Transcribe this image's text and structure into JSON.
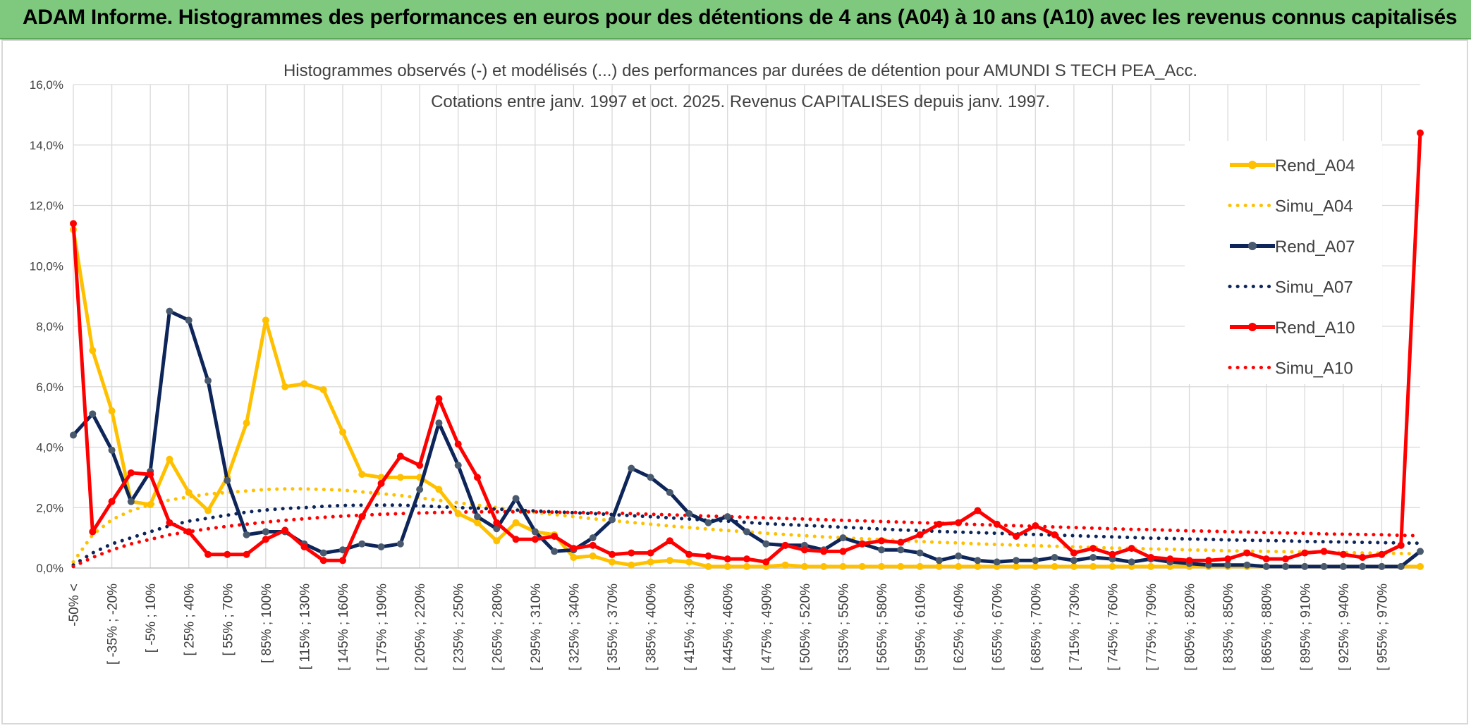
{
  "header": {
    "title": "ADAM Informe. Histogrammes des performances en euros pour des détentions de 4 ans (A04) à 10 ans (A10) avec les revenus connus capitalisés"
  },
  "chart_data": {
    "type": "line",
    "title_line1": "Histogrammes observés (-) et modélisés (...) des performances par durées de détention pour AMUNDI S TECH PEA_Acc.",
    "title_line2": "Cotations entre janv. 1997 et oct. 2025. Revenus CAPITALISES depuis janv. 1997.",
    "ylim": [
      0,
      16
    ],
    "yticks": [
      "0,0%",
      "2,0%",
      "4,0%",
      "6,0%",
      "8,0%",
      "10,0%",
      "12,0%",
      "14,0%",
      "16,0%"
    ],
    "xtick_labels": [
      "-50% <",
      "[ -35% ; -20%",
      "[ -5% ; 10%",
      "[ 25% ; 40%",
      "[ 55% ; 70%",
      "[ 85% ; 100%",
      "[ 115% ; 130%",
      "[ 145% ; 160%",
      "[ 175% ; 190%",
      "[ 205% ; 220%",
      "[ 235% ; 250%",
      "[ 265% ; 280%",
      "[ 295% ; 310%",
      "[ 325% ; 340%",
      "[ 355% ; 370%",
      "[ 385% ; 400%",
      "[ 415% ; 430%",
      "[ 445% ; 460%",
      "[ 475% ; 490%",
      "[ 505% ; 520%",
      "[ 535% ; 550%",
      "[ 565% ; 580%",
      "[ 595% ; 610%",
      "[ 625% ; 640%",
      "[ 655% ; 670%",
      "[ 685% ; 700%",
      "[ 715% ; 730%",
      "[ 745% ; 760%",
      "[ 775% ; 790%",
      "[ 805% ; 820%",
      "[ 835% ; 850%",
      "[ 865% ; 880%",
      "[ 895% ; 910%",
      "[ 925% ; 940%",
      "[ 955% ; 970%"
    ],
    "series": [
      {
        "name": "Rend_A04",
        "style": "solid",
        "color": "#FFC000",
        "values": [
          11.2,
          7.2,
          5.2,
          2.2,
          2.1,
          3.6,
          2.5,
          1.9,
          3.0,
          4.8,
          8.2,
          6.0,
          6.1,
          5.9,
          4.5,
          3.1,
          3.0,
          3.0,
          3.0,
          2.6,
          1.8,
          1.5,
          0.9,
          1.5,
          1.2,
          1.1,
          0.35,
          0.4,
          0.2,
          0.1,
          0.2,
          0.25,
          0.2,
          0.05,
          0.05,
          0.05,
          0.05,
          0.1,
          0.05,
          0.05,
          0.05,
          0.05,
          0.05,
          0.05,
          0.05,
          0.05,
          0.05,
          0.05,
          0.05,
          0.05,
          0.05,
          0.05,
          0.05,
          0.05,
          0.05,
          0.05,
          0.05,
          0.05,
          0.05,
          0.05,
          0.05,
          0.05,
          0.05,
          0.05,
          0.05,
          0.05,
          0.05,
          0.05,
          0.05,
          0.05,
          0.05
        ]
      },
      {
        "name": "Simu_A04",
        "style": "dotted",
        "color": "#FFC000",
        "values": [
          0.2,
          1.1,
          1.6,
          1.9,
          2.1,
          2.25,
          2.35,
          2.45,
          2.5,
          2.55,
          2.6,
          2.62,
          2.62,
          2.6,
          2.58,
          2.52,
          2.46,
          2.4,
          2.32,
          2.24,
          2.16,
          2.08,
          2.0,
          1.92,
          1.84,
          1.77,
          1.7,
          1.63,
          1.57,
          1.51,
          1.45,
          1.39,
          1.34,
          1.29,
          1.24,
          1.2,
          1.15,
          1.11,
          1.07,
          1.03,
          1.0,
          0.97,
          0.94,
          0.91,
          0.88,
          0.85,
          0.83,
          0.8,
          0.78,
          0.76,
          0.74,
          0.72,
          0.7,
          0.68,
          0.66,
          0.65,
          0.63,
          0.62,
          0.6,
          0.59,
          0.57,
          0.56,
          0.55,
          0.54,
          0.53,
          0.52,
          0.51,
          0.5,
          0.49,
          0.48,
          0.47
        ]
      },
      {
        "name": "Rend_A07",
        "style": "solid",
        "color": "#0D2559",
        "values": [
          4.4,
          5.1,
          3.9,
          2.2,
          3.2,
          8.5,
          8.2,
          6.2,
          2.9,
          1.1,
          1.2,
          1.2,
          0.8,
          0.5,
          0.6,
          0.8,
          0.7,
          0.8,
          2.6,
          4.8,
          3.4,
          1.7,
          1.3,
          2.3,
          1.2,
          0.55,
          0.6,
          1.0,
          1.6,
          3.3,
          3.0,
          2.5,
          1.8,
          1.5,
          1.7,
          1.2,
          0.8,
          0.75,
          0.75,
          0.6,
          1.0,
          0.8,
          0.6,
          0.6,
          0.5,
          0.25,
          0.4,
          0.25,
          0.2,
          0.25,
          0.25,
          0.35,
          0.25,
          0.35,
          0.3,
          0.2,
          0.3,
          0.2,
          0.15,
          0.1,
          0.1,
          0.1,
          0.05,
          0.05,
          0.05,
          0.05,
          0.05,
          0.05,
          0.05,
          0.05,
          0.55
        ]
      },
      {
        "name": "Simu_A07",
        "style": "dotted",
        "color": "#0D2559",
        "values": [
          0.1,
          0.5,
          0.8,
          1.0,
          1.2,
          1.4,
          1.55,
          1.65,
          1.75,
          1.85,
          1.92,
          1.97,
          2.0,
          2.04,
          2.07,
          2.08,
          2.08,
          2.08,
          2.06,
          2.03,
          2.0,
          1.98,
          1.95,
          1.92,
          1.89,
          1.86,
          1.83,
          1.8,
          1.77,
          1.73,
          1.7,
          1.66,
          1.62,
          1.58,
          1.55,
          1.51,
          1.47,
          1.44,
          1.41,
          1.38,
          1.35,
          1.32,
          1.29,
          1.26,
          1.24,
          1.21,
          1.19,
          1.17,
          1.15,
          1.13,
          1.11,
          1.09,
          1.07,
          1.05,
          1.03,
          1.01,
          0.99,
          0.98,
          0.96,
          0.95,
          0.93,
          0.92,
          0.91,
          0.9,
          0.88,
          0.87,
          0.86,
          0.85,
          0.84,
          0.83,
          0.82
        ]
      },
      {
        "name": "Rend_A10",
        "style": "solid",
        "color": "#FF0000",
        "values": [
          11.4,
          1.2,
          2.2,
          3.15,
          3.1,
          1.5,
          1.2,
          0.45,
          0.45,
          0.45,
          0.95,
          1.25,
          0.7,
          0.25,
          0.25,
          1.7,
          2.8,
          3.7,
          3.4,
          5.6,
          4.1,
          3.0,
          1.5,
          0.95,
          0.95,
          1.05,
          0.65,
          0.75,
          0.45,
          0.5,
          0.5,
          0.9,
          0.45,
          0.4,
          0.3,
          0.3,
          0.2,
          0.75,
          0.6,
          0.55,
          0.55,
          0.8,
          0.9,
          0.85,
          1.1,
          1.45,
          1.5,
          1.9,
          1.45,
          1.05,
          1.4,
          1.1,
          0.5,
          0.65,
          0.45,
          0.65,
          0.35,
          0.3,
          0.25,
          0.25,
          0.3,
          0.5,
          0.3,
          0.3,
          0.5,
          0.55,
          0.45,
          0.35,
          0.45,
          0.75,
          14.4
        ]
      },
      {
        "name": "Simu_A10",
        "style": "dotted",
        "color": "#FF0000",
        "values": [
          0.05,
          0.35,
          0.6,
          0.8,
          0.95,
          1.1,
          1.2,
          1.3,
          1.38,
          1.45,
          1.52,
          1.58,
          1.63,
          1.68,
          1.72,
          1.75,
          1.78,
          1.8,
          1.82,
          1.84,
          1.85,
          1.86,
          1.86,
          1.86,
          1.86,
          1.85,
          1.84,
          1.83,
          1.82,
          1.8,
          1.78,
          1.76,
          1.74,
          1.72,
          1.7,
          1.68,
          1.66,
          1.64,
          1.62,
          1.6,
          1.58,
          1.56,
          1.54,
          1.52,
          1.5,
          1.48,
          1.46,
          1.44,
          1.42,
          1.4,
          1.38,
          1.36,
          1.34,
          1.32,
          1.3,
          1.28,
          1.27,
          1.25,
          1.23,
          1.22,
          1.2,
          1.19,
          1.17,
          1.16,
          1.15,
          1.13,
          1.12,
          1.11,
          1.1,
          1.08,
          1.07
        ]
      }
    ]
  }
}
